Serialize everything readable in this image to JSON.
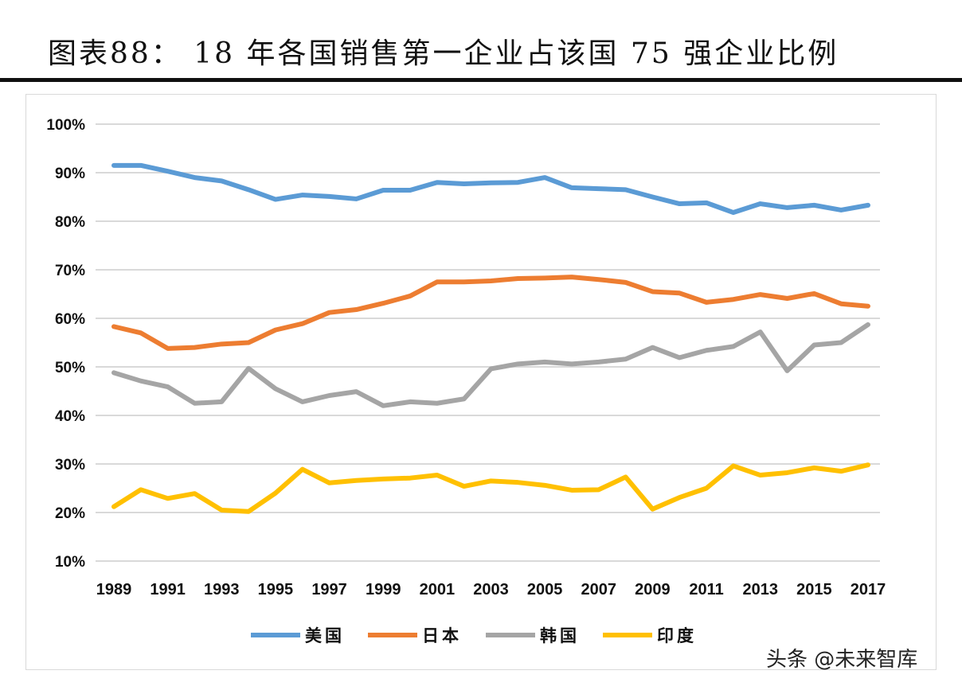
{
  "title": "图表88：  18 年各国销售第一企业占该国 75 强企业比例",
  "watermark": "头条 @未来智库",
  "chart_data": {
    "type": "line",
    "title": "图表88：  18 年各国销售第一企业占该国 75 强企业比例",
    "x": [
      1989,
      1990,
      1991,
      1992,
      1993,
      1994,
      1995,
      1996,
      1997,
      1998,
      1999,
      2000,
      2001,
      2002,
      2003,
      2004,
      2005,
      2006,
      2007,
      2008,
      2009,
      2010,
      2011,
      2012,
      2013,
      2014,
      2015,
      2016,
      2017
    ],
    "x_tick_labels": [
      "1989",
      "1991",
      "1993",
      "1995",
      "1997",
      "1999",
      "2001",
      "2003",
      "2005",
      "2007",
      "2009",
      "2011",
      "2013",
      "2015",
      "2017"
    ],
    "y_tick_labels": [
      "10%",
      "20%",
      "30%",
      "40%",
      "50%",
      "60%",
      "70%",
      "80%",
      "90%",
      "100%"
    ],
    "ylim": [
      10,
      100
    ],
    "y_unit": "%",
    "grid": true,
    "legend_position": "bottom",
    "series": [
      {
        "name": "美国",
        "color": "#5b9bd5",
        "values": [
          91.5,
          91.5,
          90.3,
          89,
          88.3,
          86.5,
          84.5,
          85.4,
          85.1,
          84.6,
          86.4,
          86.4,
          88,
          87.7,
          87.9,
          88,
          89,
          86.9,
          86.7,
          86.5,
          85,
          83.6,
          83.8,
          81.8,
          83.6,
          82.8,
          83.3,
          82.3,
          83.3
        ]
      },
      {
        "name": "日本",
        "color": "#ed7d31",
        "values": [
          58.3,
          57,
          53.8,
          54,
          54.7,
          55,
          57.6,
          58.9,
          61.2,
          61.8,
          63.1,
          64.6,
          67.5,
          67.5,
          67.7,
          68.2,
          68.3,
          68.5,
          68,
          67.4,
          65.5,
          65.2,
          63.3,
          63.9,
          64.9,
          64.1,
          65.1,
          63,
          62.5
        ]
      },
      {
        "name": "韩国",
        "color": "#a5a5a5",
        "values": [
          48.8,
          47.1,
          45.9,
          42.5,
          42.8,
          49.7,
          45.5,
          42.8,
          44.1,
          44.9,
          42,
          42.8,
          42.5,
          43.4,
          49.6,
          50.6,
          51,
          50.6,
          51,
          51.6,
          54,
          51.9,
          53.4,
          54.2,
          57.2,
          49.2,
          54.5,
          55,
          58.7
        ]
      },
      {
        "name": "印度",
        "color": "#ffc000",
        "values": [
          21.2,
          24.7,
          22.9,
          23.9,
          20.5,
          20.2,
          24,
          28.9,
          26.1,
          26.6,
          26.9,
          27.1,
          27.7,
          25.4,
          26.5,
          26.2,
          25.6,
          24.6,
          24.7,
          27.3,
          20.7,
          23.1,
          25,
          29.6,
          27.7,
          28.2,
          29.2,
          28.5,
          29.8
        ]
      }
    ]
  }
}
